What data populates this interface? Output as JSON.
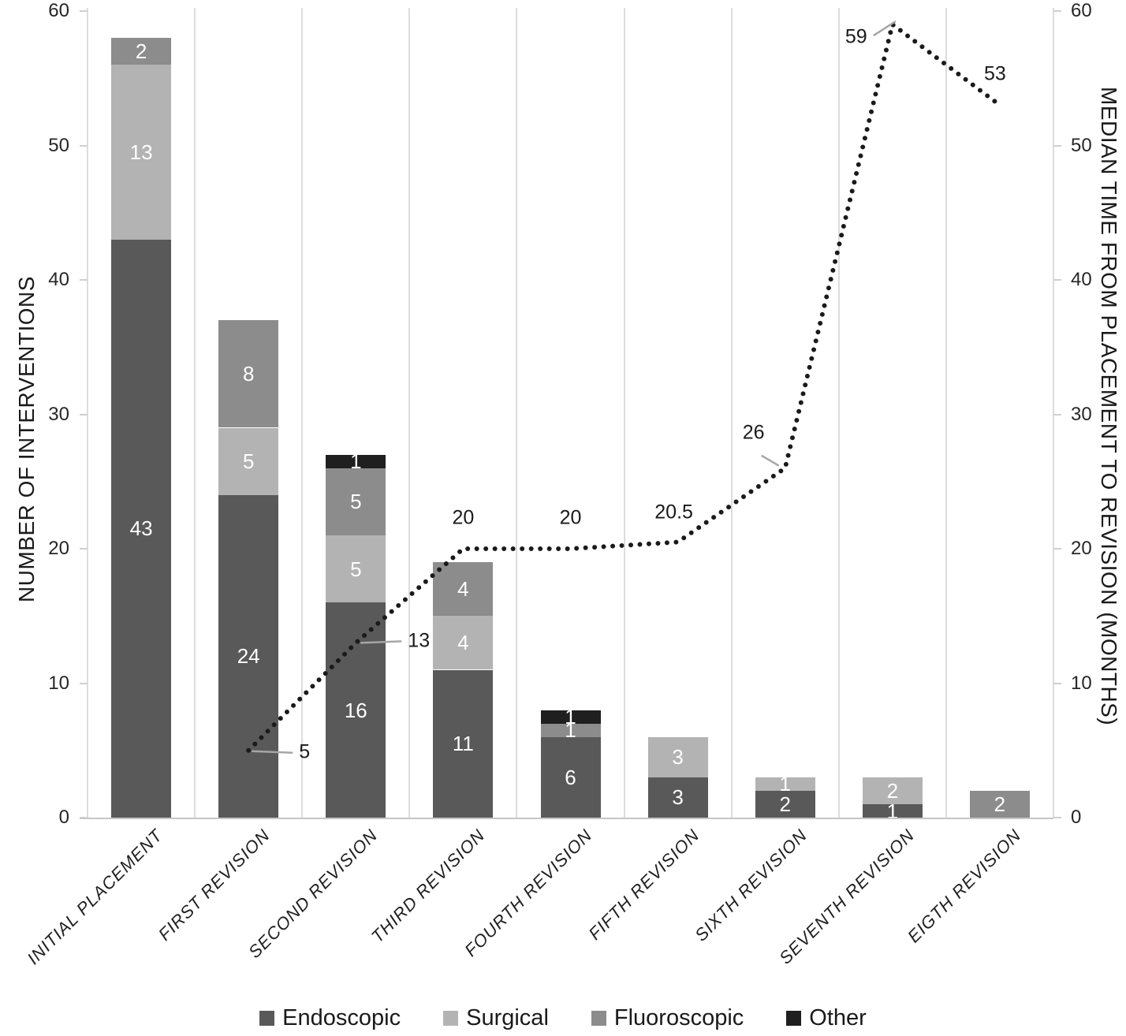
{
  "chart_data": {
    "type": "bar",
    "subtype": "stacked-bar-with-line",
    "categories": [
      "INITIAL PLACEMENT",
      "FIRST REVISION",
      "SECOND REVISION",
      "THIRD REVISION",
      "FOURTH REVISION",
      "FIFTH REVISION",
      "SIXTH REVISION",
      "SEVENTH REVISION",
      "EIGTH REVISION"
    ],
    "bar_series": [
      {
        "name": "Endoscopic",
        "color": "#595959",
        "values": [
          43,
          24,
          16,
          11,
          6,
          3,
          2,
          1,
          0
        ]
      },
      {
        "name": "Surgical",
        "color": "#b3b3b3",
        "values": [
          13,
          5,
          5,
          4,
          0,
          3,
          1,
          2,
          0
        ]
      },
      {
        "name": "Fluoroscopic",
        "color": "#8c8c8c",
        "values": [
          2,
          8,
          5,
          4,
          1,
          0,
          0,
          0,
          2
        ]
      },
      {
        "name": "Other",
        "color": "#1f1f1f",
        "values": [
          0,
          0,
          1,
          0,
          1,
          0,
          0,
          0,
          0
        ]
      }
    ],
    "bar_totals": [
      58,
      37,
      27,
      19,
      8,
      6,
      3,
      3,
      2
    ],
    "line_series": {
      "name": "Median time from placement to revision",
      "color": "#1a1a1a",
      "style": "dotted",
      "points": [
        {
          "category": "FIRST REVISION",
          "value": 5,
          "label": "5"
        },
        {
          "category": "SECOND REVISION",
          "value": 13,
          "label": "13"
        },
        {
          "category": "THIRD REVISION",
          "value": 20,
          "label": "20"
        },
        {
          "category": "FOURTH REVISION",
          "value": 20,
          "label": "20"
        },
        {
          "category": "FIFTH REVISION",
          "value": 20.5,
          "label": "20.5"
        },
        {
          "category": "SIXTH REVISION",
          "value": 26,
          "label": "26"
        },
        {
          "category": "SEVENTH REVISION",
          "value": 59,
          "label": "59"
        },
        {
          "category": "EIGTH REVISION",
          "value": 53,
          "label": "53"
        }
      ]
    },
    "left_axis": {
      "title": "NUMBER OF INTERVENTIONS",
      "min": 0,
      "max": 60,
      "tick_step": 10,
      "ticks": [
        "0",
        "10",
        "20",
        "30",
        "40",
        "50",
        "60"
      ]
    },
    "right_axis": {
      "title": "MEDIAN TIME FROM PLACEMENT TO REVISION (MONTHS)",
      "min": 0,
      "max": 60,
      "tick_step": 10,
      "ticks": [
        "0",
        "10",
        "20",
        "30",
        "40",
        "50",
        "60"
      ]
    },
    "legend": [
      {
        "label": "Endoscopic",
        "color": "#595959"
      },
      {
        "label": "Surgical",
        "color": "#b3b3b3"
      },
      {
        "label": "Fluoroscopic",
        "color": "#8c8c8c"
      },
      {
        "label": "Other",
        "color": "#1f1f1f"
      }
    ],
    "grid": "vertical-only",
    "legend_position": "bottom"
  }
}
